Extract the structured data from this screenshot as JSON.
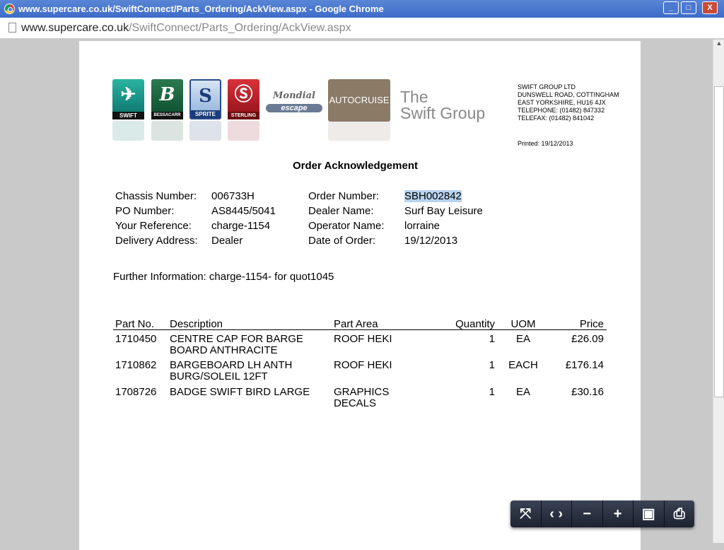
{
  "window": {
    "title": "www.supercare.co.uk/SwiftConnect/Parts_Ordering/AckView.aspx - Google Chrome",
    "controls": [
      "_",
      "□",
      "X"
    ]
  },
  "address": {
    "host": "www.supercare.co.uk",
    "path": "/SwiftConnect/Parts_Ordering/AckView.aspx"
  },
  "brands": [
    "SWIFT",
    "BESSACARR",
    "SPRITE",
    "STERLING",
    "Mondial",
    "escape",
    "AUTOCRUISE",
    "The",
    "Swift Group"
  ],
  "company": {
    "name": "SWIFT GROUP LTD",
    "line1": "DUNSWELL ROAD, COTTINGHAM",
    "line2": "EAST YORKSHIRE, HU16 4JX",
    "phone": "TELEPHONE: (01482) 847332",
    "fax": "TELEFAX: (01482) 841042",
    "printed": "Printed: 19/12/2013"
  },
  "doc": {
    "title": "Order Acknowledgement",
    "fields": [
      {
        "label": "Chassis Number:",
        "value": "006733H"
      },
      {
        "label": "Order Number:",
        "value": "SBH002842"
      },
      {
        "label": "PO Number:",
        "value": "AS8445/5041"
      },
      {
        "label": "Dealer Name:",
        "value": "Surf Bay Leisure"
      },
      {
        "label": "Your Reference:",
        "value": "charge-1154"
      },
      {
        "label": "Operator Name:",
        "value": "lorraine"
      },
      {
        "label": "Delivery Address:",
        "value": "Dealer"
      },
      {
        "label": "Date of Order:",
        "value": "19/12/2013"
      }
    ],
    "further": "Further Information: charge-1154-  for quot1045"
  },
  "table": {
    "headers": [
      "Part No.",
      "Description",
      "Part Area",
      "Quantity",
      "UOM",
      "Price"
    ],
    "rows": [
      {
        "part": "1710450",
        "desc1": "CENTRE CAP FOR BARGE",
        "desc2": "BOARD ANTHRACITE",
        "area1": "ROOF HEKI",
        "area2": "",
        "qty": "1",
        "uom": "EA",
        "price": "£26.09"
      },
      {
        "part": "1710862",
        "desc1": "BARGEBOARD LH ANTH",
        "desc2": "BURG/SOLEIL 12FT",
        "area1": "ROOF HEKI",
        "area2": "",
        "qty": "1",
        "uom": "EACH",
        "price": "£176.14"
      },
      {
        "part": "1708726",
        "desc1": "BADGE SWIFT BIRD LARGE",
        "desc2": "",
        "area1": "GRAPHICS",
        "area2": "DECALS",
        "qty": "1",
        "uom": "EA",
        "price": "£30.16"
      }
    ]
  },
  "toolbar": {
    "buttons": [
      "fit-page",
      "fit-width",
      "zoom-out",
      "zoom-in",
      "save",
      "print"
    ],
    "glyphs": [
      "⤧",
      "‹ ›",
      "−",
      "+",
      "▣",
      "⎙"
    ]
  }
}
